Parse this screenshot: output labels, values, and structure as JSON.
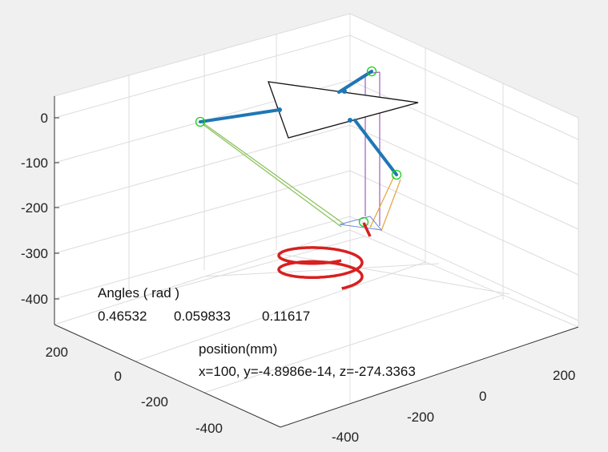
{
  "chart_data": {
    "type": "3d-line",
    "view": "isometric-like",
    "grid": true,
    "zlim": [
      -450,
      50
    ],
    "z_ticks": [
      "0",
      "-100",
      "-200",
      "-300",
      "-400"
    ],
    "x_ticks": [
      "200",
      "0",
      "-200",
      "-400"
    ],
    "y_ticks": [
      "200",
      "0",
      "-200",
      "-400"
    ],
    "series": [
      {
        "style": "helix",
        "color": "#d91f1f"
      },
      {
        "style": "platform-triangle",
        "color": "#111111"
      },
      {
        "style": "links",
        "colors": [
          "#1f77b4",
          "#88c057",
          "#9b5fc0",
          "#e6a23c"
        ]
      }
    ],
    "annotations": {
      "angles_title": "Angles ( rad )",
      "angles_values": [
        "0.46532",
        "0.059833",
        "0.11617"
      ],
      "position_title": "position(mm)",
      "position_value": "x=100, y=-4.8986e-14, z=-274.3363"
    }
  }
}
